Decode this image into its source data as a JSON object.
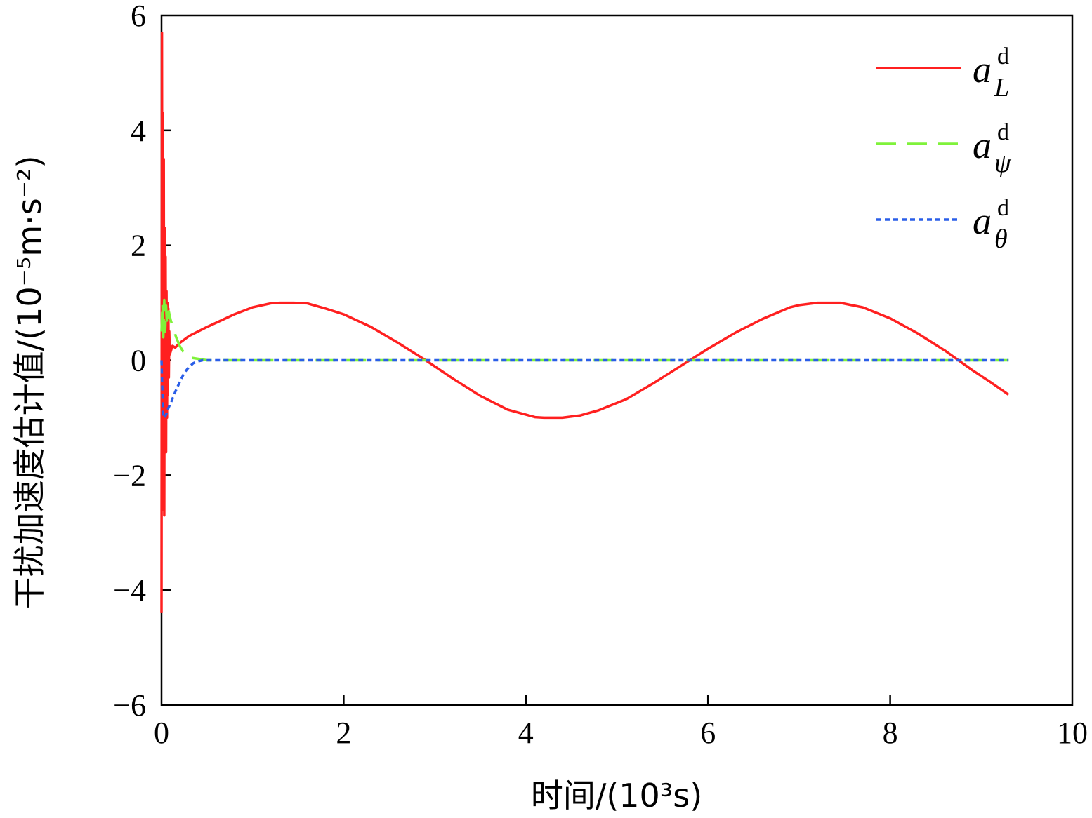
{
  "chart_data": {
    "type": "line",
    "xlabel": "时间/(10³s)",
    "ylabel": "干扰加速度估计值/(10⁻⁵m·s⁻²)",
    "xlim": [
      0,
      10
    ],
    "ylim": [
      -6,
      6
    ],
    "x_ticks": [
      "0",
      "2",
      "4",
      "6",
      "8",
      "10"
    ],
    "y_ticks": [
      "−6",
      "−4",
      "−2",
      "0",
      "2",
      "4",
      "6"
    ],
    "legend_position": "top-right",
    "grid": false,
    "series": [
      {
        "name": "a_L^d",
        "symbol": "a",
        "superscript": "d",
        "subscript": "L",
        "color": "#ff2020",
        "style": "solid",
        "x": [
          0,
          0.005,
          0.01,
          0.015,
          0.02,
          0.025,
          0.03,
          0.035,
          0.04,
          0.045,
          0.05,
          0.055,
          0.06,
          0.065,
          0.07,
          0.075,
          0.08,
          0.085,
          0.09,
          0.1,
          0.12,
          0.15,
          0.2,
          0.3,
          0.5,
          0.8,
          1.0,
          1.2,
          1.3,
          1.45,
          1.6,
          1.8,
          2.0,
          2.3,
          2.6,
          2.9,
          3.2,
          3.5,
          3.8,
          4.1,
          4.2,
          4.4,
          4.6,
          4.8,
          5.1,
          5.4,
          5.7,
          6.0,
          6.3,
          6.6,
          6.9,
          7.0,
          7.2,
          7.45,
          7.7,
          8.0,
          8.3,
          8.6,
          8.9,
          9.1,
          9.3
        ],
        "y": [
          -4.4,
          5.7,
          -2.6,
          4.3,
          -1.5,
          3.5,
          -2.7,
          2.3,
          -1.5,
          1.8,
          -1.6,
          1.2,
          -1.0,
          1.0,
          -0.6,
          0.9,
          -0.3,
          0.5,
          0.1,
          0.15,
          0.25,
          0.22,
          0.3,
          0.42,
          0.58,
          0.8,
          0.92,
          0.99,
          1.0,
          1.0,
          0.99,
          0.9,
          0.8,
          0.58,
          0.3,
          0.0,
          -0.32,
          -0.62,
          -0.86,
          -0.99,
          -1.0,
          -1.0,
          -0.96,
          -0.87,
          -0.68,
          -0.4,
          -0.1,
          0.2,
          0.48,
          0.72,
          0.92,
          0.96,
          1.0,
          1.0,
          0.92,
          0.73,
          0.47,
          0.17,
          -0.17,
          -0.38,
          -0.6
        ]
      },
      {
        "name": "a_ψ^d",
        "symbol": "a",
        "superscript": "d",
        "subscript": "ψ",
        "color": "#7ff23a",
        "style": "dashed",
        "x": [
          0,
          0.01,
          0.02,
          0.03,
          0.04,
          0.05,
          0.06,
          0.08,
          0.1,
          0.13,
          0.16,
          0.2,
          0.25,
          0.3,
          0.5,
          1.0,
          2.0,
          4.0,
          6.0,
          8.0,
          9.3
        ],
        "y": [
          0.5,
          1.0,
          0.4,
          1.05,
          0.5,
          0.95,
          0.6,
          0.85,
          0.7,
          0.55,
          0.4,
          0.25,
          0.12,
          0.05,
          0.0,
          0.0,
          0.0,
          0.0,
          0.0,
          0.0,
          0.0
        ]
      },
      {
        "name": "a_θ^d",
        "symbol": "a",
        "superscript": "d",
        "subscript": "θ",
        "color": "#2a5ee8",
        "style": "dotted",
        "x": [
          0,
          0.01,
          0.02,
          0.03,
          0.05,
          0.07,
          0.1,
          0.15,
          0.2,
          0.25,
          0.3,
          0.35,
          0.4,
          0.45,
          0.5,
          1.0,
          2.0,
          4.0,
          6.0,
          8.0,
          9.3
        ],
        "y": [
          0.0,
          -0.6,
          -1.0,
          -1.0,
          -0.95,
          -0.85,
          -0.75,
          -0.55,
          -0.38,
          -0.22,
          -0.12,
          -0.05,
          -0.02,
          0.0,
          0.0,
          0.0,
          0.0,
          0.0,
          0.0,
          0.0,
          0.0
        ]
      }
    ]
  }
}
